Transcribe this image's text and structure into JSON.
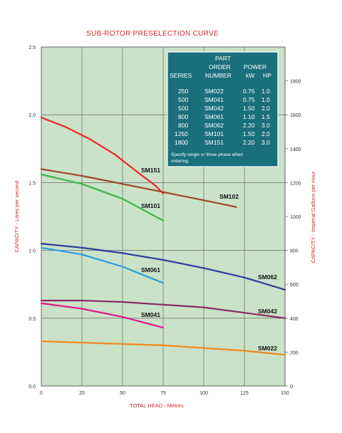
{
  "chart_data": {
    "type": "line",
    "title": "SUB-ROTOR PRESELECTION CURVE",
    "xlabel": "TOTAL HEAD - Metres",
    "ylabel": "CAPACITY - Litres per second",
    "y2label": "CAPACITY - Imperial Gallons per Hour",
    "xlim": [
      0,
      150
    ],
    "ylim": [
      0,
      2.5
    ],
    "y2lim": [
      0,
      2000
    ],
    "x_ticks": [
      "0",
      "25",
      "50",
      "75",
      "100",
      "125",
      "150"
    ],
    "y_ticks": [
      "0.0",
      "0.5",
      "1.0",
      "1.5",
      "2.0",
      "2.5"
    ],
    "y2_ticks": [
      "0",
      "200",
      "400",
      "600",
      "800",
      "1000",
      "1200",
      "1400",
      "1600",
      "1800"
    ],
    "grid": true,
    "series": [
      {
        "name": "SM151",
        "color": "#e8262c",
        "x": [
          0,
          15,
          30,
          45,
          60,
          70,
          75
        ],
        "y": [
          1.98,
          1.91,
          1.82,
          1.71,
          1.57,
          1.48,
          1.42
        ]
      },
      {
        "name": "SM102",
        "color": "#a0442a",
        "x": [
          0,
          25,
          50,
          75,
          100,
          120
        ],
        "y": [
          1.6,
          1.55,
          1.49,
          1.43,
          1.37,
          1.32
        ]
      },
      {
        "name": "SM101",
        "color": "#3cb648",
        "x": [
          0,
          25,
          50,
          75
        ],
        "y": [
          1.56,
          1.49,
          1.38,
          1.22
        ]
      },
      {
        "name": "SM062",
        "color": "#2b3d9e",
        "x": [
          0,
          25,
          50,
          75,
          100,
          125,
          150
        ],
        "y": [
          1.05,
          1.02,
          0.98,
          0.93,
          0.87,
          0.8,
          0.71
        ]
      },
      {
        "name": "SM061",
        "color": "#2a9ee0",
        "x": [
          0,
          25,
          50,
          75
        ],
        "y": [
          1.02,
          0.97,
          0.88,
          0.76
        ]
      },
      {
        "name": "SM042",
        "color": "#8a2a66",
        "x": [
          0,
          25,
          50,
          75,
          100,
          125,
          150
        ],
        "y": [
          0.63,
          0.63,
          0.62,
          0.6,
          0.58,
          0.54,
          0.5
        ]
      },
      {
        "name": "SM041",
        "color": "#e3188c",
        "x": [
          0,
          25,
          50,
          75
        ],
        "y": [
          0.61,
          0.57,
          0.51,
          0.43
        ]
      },
      {
        "name": "SM022",
        "color": "#f08a1c",
        "x": [
          0,
          25,
          50,
          75,
          100,
          125,
          150
        ],
        "y": [
          0.33,
          0.32,
          0.31,
          0.3,
          0.28,
          0.26,
          0.23
        ]
      }
    ]
  },
  "table": {
    "bg": "#1a6f7d",
    "headers": {
      "series": "SERIES",
      "part_l1": "PART",
      "part_l2": "ORDER",
      "part_l3": "NUMBER",
      "power": "POWER",
      "kw": "kW",
      "hp": "HP"
    },
    "rows": [
      {
        "series": "250",
        "part": "SM022",
        "kw": "0.75",
        "hp": "1.0"
      },
      {
        "series": "500",
        "part": "SM041",
        "kw": "0.75",
        "hp": "1.0"
      },
      {
        "series": "500",
        "part": "SM042",
        "kw": "1.50",
        "hp": "2.0"
      },
      {
        "series": "800",
        "part": "SM061",
        "kw": "1.10",
        "hp": "1.5"
      },
      {
        "series": "800",
        "part": "SM062",
        "kw": "2.20",
        "hp": "3.0"
      },
      {
        "series": "1250",
        "part": "SM101",
        "kw": "1.50",
        "hp": "2.0"
      },
      {
        "series": "1800",
        "part": "SM151",
        "kw": "2.20",
        "hp": "3.0"
      }
    ],
    "note_l1": "Specify single or three phase when",
    "note_l2": "ordering."
  }
}
